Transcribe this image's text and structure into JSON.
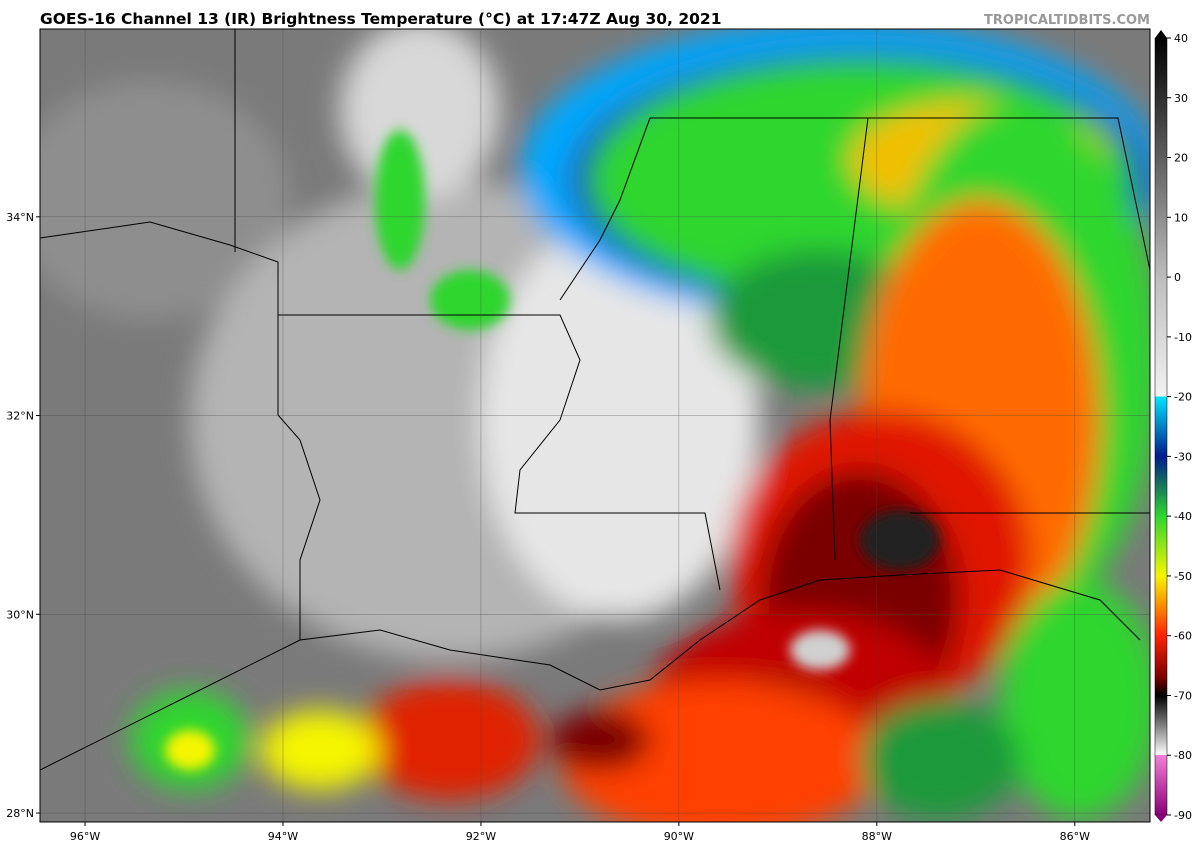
{
  "header": {
    "title": "GOES-16 Channel 13 (IR) Brightness Temperature (°C) at 17:47Z Aug 30, 2021",
    "watermark": "TROPICALTIDBITS.COM"
  },
  "map": {
    "xlim": [
      -96.455,
      -85.24
    ],
    "ylim": [
      27.91,
      35.89
    ],
    "xticks": [
      {
        "value": -96,
        "label": "96°W"
      },
      {
        "value": -94,
        "label": "94°W"
      },
      {
        "value": -92,
        "label": "92°W"
      },
      {
        "value": -90,
        "label": "90°W"
      },
      {
        "value": -88,
        "label": "88°W"
      },
      {
        "value": -86,
        "label": "86°W"
      }
    ],
    "yticks": [
      {
        "value": 28,
        "label": "28°N"
      },
      {
        "value": 30,
        "label": "30°N"
      },
      {
        "value": 32,
        "label": "32°N"
      },
      {
        "value": 34,
        "label": "34°N"
      }
    ],
    "grid": true
  },
  "colorbar": {
    "lim": [
      -90,
      40
    ],
    "ticks": [
      40,
      30,
      20,
      10,
      0,
      -10,
      -20,
      -30,
      -40,
      -50,
      -60,
      -70,
      -80,
      -90
    ],
    "stops": [
      [
        40,
        "#000000"
      ],
      [
        0,
        "#bdbdbd"
      ],
      [
        -20,
        "#f2f2f2"
      ],
      [
        -20,
        "#00e5ff"
      ],
      [
        -30,
        "#001c8c"
      ],
      [
        -40,
        "#2ed62e"
      ],
      [
        -50,
        "#f5f500"
      ],
      [
        -60,
        "#ff2200"
      ],
      [
        -67,
        "#7a0000"
      ],
      [
        -70,
        "#000000"
      ],
      [
        -80,
        "#ffffff"
      ],
      [
        -80,
        "#f47fd6"
      ],
      [
        -90,
        "#8a007a"
      ]
    ]
  }
}
